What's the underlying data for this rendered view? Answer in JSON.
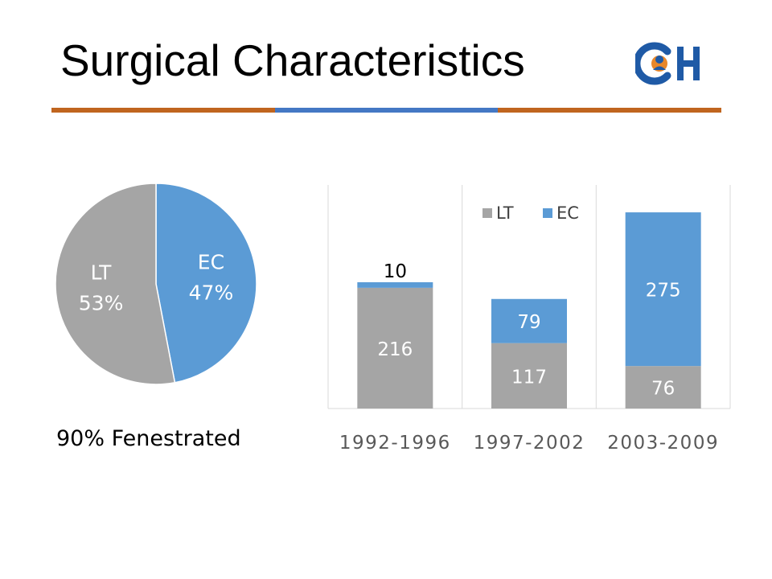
{
  "slide": {
    "title": "Surgical Characteristics",
    "note": "90% Fenestrated",
    "colors": {
      "orange_rule": "#c0651f",
      "blue_rule": "#4478c4",
      "logo_blue": "#1f5aa6",
      "logo_orange": "#e8872a"
    }
  },
  "chart_data": [
    {
      "type": "pie",
      "categories": [
        "EC",
        "LT"
      ],
      "values": [
        47,
        53
      ],
      "value_labels": [
        "47%",
        "53%"
      ],
      "colors": [
        "#5b9bd5",
        "#a5a5a5"
      ]
    },
    {
      "type": "bar",
      "stacked": true,
      "categories": [
        "1992-1996",
        "1997-2002",
        "2003-2009"
      ],
      "series": [
        {
          "name": "LT",
          "values": [
            216,
            117,
            76
          ],
          "color": "#a5a5a5"
        },
        {
          "name": "EC",
          "values": [
            10,
            79,
            275
          ],
          "color": "#5b9bd5"
        }
      ],
      "ylim": [
        0,
        400
      ],
      "grid": "vertical",
      "legend": "top-right"
    }
  ]
}
